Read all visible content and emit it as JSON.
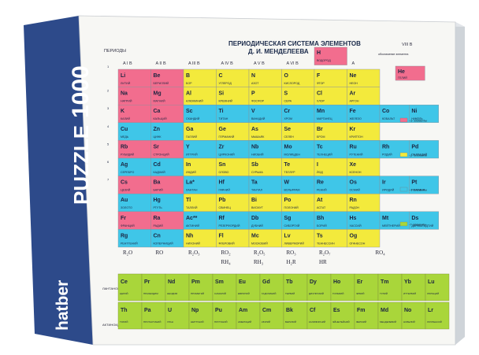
{
  "box": {
    "brand": "hatber",
    "product": "PUZZLE",
    "piece_count": "1000"
  },
  "table": {
    "title_line1": "ПЕРИОДИЧЕСКАЯ СИСТЕМА ЭЛЕМЕНТОВ",
    "title_line2": "Д. И. МЕНДЕЛЕЕВА",
    "periods_label": "ПЕРИОДЫ",
    "group_labels": [
      "A I B",
      "A II B",
      "A III B",
      "A IV B",
      "A V B",
      "A VI B",
      "A VII B",
      "A",
      "VIII B"
    ],
    "period_numbers": [
      "1",
      "2",
      "3",
      "4",
      "5",
      "6",
      "7"
    ],
    "oxides": [
      "R₂O",
      "RO",
      "R₂O₃",
      "RO₂",
      "R₂O₅",
      "RO₃",
      "R₂O₇",
      "RO₄"
    ],
    "hydrides": [
      "RH₄",
      "RH₃",
      "H₂R",
      "HR"
    ],
    "legend": [
      "- s- элементы",
      "- p- элементы",
      "- d- элементы",
      "- f- элементы"
    ],
    "actinides_label": "АКТИНОИДЫ",
    "lanthanides_label": "ЛАНТАНОИДЫ",
    "hydrogen": {
      "symbol": "H",
      "name": "ВОДОРОД"
    },
    "helium": {
      "symbol": "He",
      "name": "ГЕЛИЙ"
    },
    "legend_note": "обозначение элемента"
  },
  "colors": {
    "s": "#f26d8e",
    "p": "#f3ea3c",
    "d": "#3fc6e8",
    "f": "#a9d63a",
    "box_side": "#2d4a8a",
    "box_face": "#f7f7f4"
  },
  "rows": [
    [
      {
        "s": "Li",
        "n": "ЛИТИЙ",
        "c": "s"
      },
      {
        "s": "Be",
        "n": "БЕРИЛЛИЙ",
        "c": "s"
      },
      {
        "s": "B",
        "n": "БОР",
        "c": "p"
      },
      {
        "s": "C",
        "n": "УГЛЕРОД",
        "c": "p"
      },
      {
        "s": "N",
        "n": "АЗОТ",
        "c": "p"
      },
      {
        "s": "O",
        "n": "КИСЛОРОД",
        "c": "p"
      },
      {
        "s": "F",
        "n": "ФТОР",
        "c": "p"
      },
      {
        "s": "Ne",
        "n": "НЕОН",
        "c": "p"
      }
    ],
    [
      {
        "s": "Na",
        "n": "НАТРИЙ",
        "c": "s"
      },
      {
        "s": "Mg",
        "n": "МАГНИЙ",
        "c": "s"
      },
      {
        "s": "Al",
        "n": "АЛЮМИНИЙ",
        "c": "p"
      },
      {
        "s": "Si",
        "n": "КРЕМНИЙ",
        "c": "p"
      },
      {
        "s": "P",
        "n": "ФОСФОР",
        "c": "p"
      },
      {
        "s": "S",
        "n": "СЕРА",
        "c": "p"
      },
      {
        "s": "Cl",
        "n": "ХЛОР",
        "c": "p"
      },
      {
        "s": "Ar",
        "n": "АРГОН",
        "c": "p"
      }
    ],
    [
      {
        "s": "K",
        "n": "КАЛИЙ",
        "c": "s"
      },
      {
        "s": "Ca",
        "n": "КАЛЬЦИЙ",
        "c": "s"
      },
      {
        "s": "Sc",
        "n": "СКАНДИЙ",
        "c": "d"
      },
      {
        "s": "Ti",
        "n": "ТИТАН",
        "c": "d"
      },
      {
        "s": "V",
        "n": "ВАНАДИЙ",
        "c": "d"
      },
      {
        "s": "Cr",
        "n": "ХРОМ",
        "c": "d"
      },
      {
        "s": "Mn",
        "n": "МАРГАНЕЦ",
        "c": "d"
      },
      {
        "s": "Fe",
        "n": "ЖЕЛЕЗО",
        "c": "d"
      }
    ],
    [
      {
        "s": "Cu",
        "n": "МЕДЬ",
        "c": "d"
      },
      {
        "s": "Zn",
        "n": "ЦИНК",
        "c": "d"
      },
      {
        "s": "Ga",
        "n": "ГАЛЛИЙ",
        "c": "p"
      },
      {
        "s": "Ge",
        "n": "ГЕРМАНИЙ",
        "c": "p"
      },
      {
        "s": "As",
        "n": "МЫШЬЯК",
        "c": "p"
      },
      {
        "s": "Se",
        "n": "СЕЛЕН",
        "c": "p"
      },
      {
        "s": "Br",
        "n": "БРОМ",
        "c": "p"
      },
      {
        "s": "Kr",
        "n": "КРИПТОН",
        "c": "p"
      }
    ],
    [
      {
        "s": "Rb",
        "n": "РУБИДИЙ",
        "c": "s"
      },
      {
        "s": "Sr",
        "n": "СТРОНЦИЙ",
        "c": "s"
      },
      {
        "s": "Y",
        "n": "ИТТРИЙ",
        "c": "d"
      },
      {
        "s": "Zr",
        "n": "ЦИРКОНИЙ",
        "c": "d"
      },
      {
        "s": "Nb",
        "n": "НИОБИЙ",
        "c": "d"
      },
      {
        "s": "Mo",
        "n": "МОЛИБДЕН",
        "c": "d"
      },
      {
        "s": "Tc",
        "n": "ТЕХНЕЦИЙ",
        "c": "d"
      },
      {
        "s": "Ru",
        "n": "РУТЕНИЙ",
        "c": "d"
      }
    ],
    [
      {
        "s": "Ag",
        "n": "СЕРЕБРО",
        "c": "d"
      },
      {
        "s": "Cd",
        "n": "КАДМИЙ",
        "c": "d"
      },
      {
        "s": "In",
        "n": "ИНДИЙ",
        "c": "p"
      },
      {
        "s": "Sn",
        "n": "ОЛОВО",
        "c": "p"
      },
      {
        "s": "Sb",
        "n": "СУРЬМА",
        "c": "p"
      },
      {
        "s": "Te",
        "n": "ТЕЛЛУР",
        "c": "p"
      },
      {
        "s": "I",
        "n": "ЙОД",
        "c": "p"
      },
      {
        "s": "Xe",
        "n": "КСЕНОН",
        "c": "p"
      }
    ],
    [
      {
        "s": "Cs",
        "n": "ЦЕЗИЙ",
        "c": "s"
      },
      {
        "s": "Ba",
        "n": "БАРИЙ",
        "c": "s"
      },
      {
        "s": "La*",
        "n": "ЛАНТАН",
        "c": "d"
      },
      {
        "s": "Hf",
        "n": "ГАФНИЙ",
        "c": "d"
      },
      {
        "s": "Ta",
        "n": "ТАНТАЛ",
        "c": "d"
      },
      {
        "s": "W",
        "n": "ВОЛЬФРАМ",
        "c": "d"
      },
      {
        "s": "Re",
        "n": "РЕНИЙ",
        "c": "d"
      },
      {
        "s": "Os",
        "n": "ОСМИЙ",
        "c": "d"
      }
    ],
    [
      {
        "s": "Au",
        "n": "ЗОЛОТО",
        "c": "d"
      },
      {
        "s": "Hg",
        "n": "РТУТЬ",
        "c": "d"
      },
      {
        "s": "Tl",
        "n": "ТАЛЛИЙ",
        "c": "p"
      },
      {
        "s": "Pb",
        "n": "СВИНЕЦ",
        "c": "p"
      },
      {
        "s": "Bi",
        "n": "ВИСМУТ",
        "c": "p"
      },
      {
        "s": "Po",
        "n": "ПОЛОНИЙ",
        "c": "p"
      },
      {
        "s": "At",
        "n": "АСТАТ",
        "c": "p"
      },
      {
        "s": "Rn",
        "n": "РАДОН",
        "c": "p"
      }
    ],
    [
      {
        "s": "Fr",
        "n": "ФРАНЦИЙ",
        "c": "s"
      },
      {
        "s": "Ra",
        "n": "РАДИЙ",
        "c": "s"
      },
      {
        "s": "Ac**",
        "n": "АКТИНИЙ",
        "c": "d"
      },
      {
        "s": "Rf",
        "n": "РЕЗЕРФОРДИЙ",
        "c": "d"
      },
      {
        "s": "Db",
        "n": "ДУБНИЙ",
        "c": "d"
      },
      {
        "s": "Sg",
        "n": "СИБОРГИЙ",
        "c": "d"
      },
      {
        "s": "Bh",
        "n": "БОРИЙ",
        "c": "d"
      },
      {
        "s": "Hs",
        "n": "ХАССИЙ",
        "c": "d"
      }
    ],
    [
      {
        "s": "Rg",
        "n": "РЕНТГЕНИЙ",
        "c": "d"
      },
      {
        "s": "Cn",
        "n": "КОПЕРНИЦИЙ",
        "c": "d"
      },
      {
        "s": "Nh",
        "n": "НИХОНИЙ",
        "c": "p"
      },
      {
        "s": "Fl",
        "n": "ФЛЕРОВИЙ",
        "c": "p"
      },
      {
        "s": "Mc",
        "n": "МОСКОВИЙ",
        "c": "p"
      },
      {
        "s": "Lv",
        "n": "ЛИВЕРМОРИЙ",
        "c": "p"
      },
      {
        "s": "Ts",
        "n": "ТЕННЕССИН",
        "c": "p"
      },
      {
        "s": "Og",
        "n": "ОГАНЕСОН",
        "c": "p"
      }
    ]
  ],
  "group8_extra": [
    [
      {
        "s": "Co",
        "n": "КОБАЛЬТ"
      },
      {
        "s": "Ni",
        "n": "НИКЕЛЬ"
      }
    ],
    [
      {
        "s": "Rh",
        "n": "РОДИЙ"
      },
      {
        "s": "Pd",
        "n": "ПАЛЛАДИЙ"
      }
    ],
    [
      {
        "s": "Ir",
        "n": "ИРИДИЙ"
      },
      {
        "s": "Pt",
        "n": "ПЛАТИНА"
      }
    ],
    [
      {
        "s": "Mt",
        "n": "МЕЙТНЕРИЙ"
      },
      {
        "s": "Ds",
        "n": "ДАРМШТАДТИЙ"
      }
    ]
  ],
  "lanthanides": [
    {
      "s": "Ce",
      "n": "ЦЕРИЙ"
    },
    {
      "s": "Pr",
      "n": "ПРАЗЕОДИМ"
    },
    {
      "s": "Nd",
      "n": "НЕОДИМ"
    },
    {
      "s": "Pm",
      "n": "ПРОМЕТИЙ"
    },
    {
      "s": "Sm",
      "n": "САМАРИЙ"
    },
    {
      "s": "Eu",
      "n": "ЕВРОПИЙ"
    },
    {
      "s": "Gd",
      "n": "ГАДОЛИНИЙ"
    },
    {
      "s": "Tb",
      "n": "ТЕРБИЙ"
    },
    {
      "s": "Dy",
      "n": "ДИСПРОЗИЙ"
    },
    {
      "s": "Ho",
      "n": "ГОЛЬМИЙ"
    },
    {
      "s": "Er",
      "n": "ЭРБИЙ"
    },
    {
      "s": "Tm",
      "n": "ТУЛИЙ"
    },
    {
      "s": "Yb",
      "n": "ИТТЕРБИЙ"
    },
    {
      "s": "Lu",
      "n": "ЛЮТЕЦИЙ"
    }
  ],
  "actinides": [
    {
      "s": "Th",
      "n": "ТОРИЙ"
    },
    {
      "s": "Pa",
      "n": "ПРОТАКТИНИЙ"
    },
    {
      "s": "U",
      "n": "УРАН"
    },
    {
      "s": "Np",
      "n": "НЕПТУНИЙ"
    },
    {
      "s": "Pu",
      "n": "ПЛУТОНИЙ"
    },
    {
      "s": "Am",
      "n": "АМЕРИЦИЙ"
    },
    {
      "s": "Cm",
      "n": "КЮРИЙ"
    },
    {
      "s": "Bk",
      "n": "БЕРКЛИЙ"
    },
    {
      "s": "Cf",
      "n": "КАЛИФОРНИЙ"
    },
    {
      "s": "Es",
      "n": "ЭЙНШТЕЙНИЙ"
    },
    {
      "s": "Fm",
      "n": "ФЕРМИЙ"
    },
    {
      "s": "Md",
      "n": "МЕНДЕЛЕВИЙ"
    },
    {
      "s": "No",
      "n": "НОБЕЛИЙ"
    },
    {
      "s": "Lr",
      "n": "ЛОУРЕНСИЙ"
    }
  ]
}
